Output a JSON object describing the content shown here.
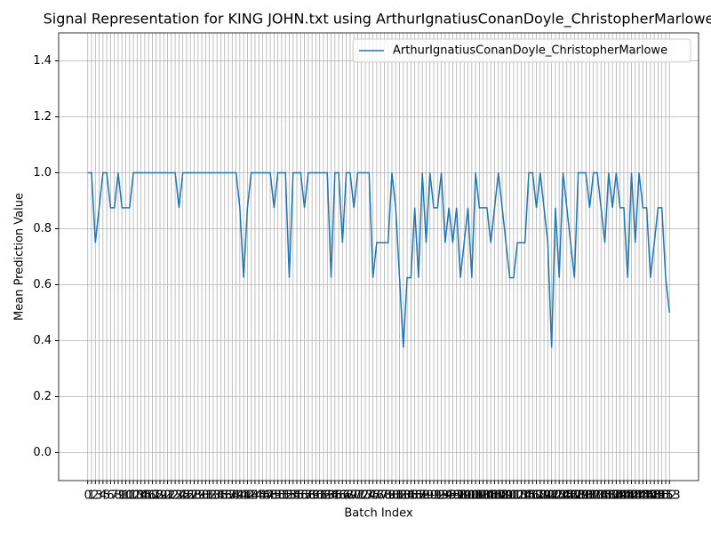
{
  "chart_data": {
    "type": "line",
    "title": "Signal Representation for KING JOHN.txt using ArthurIgnatiusConanDoyle_ChristopherMarlowe",
    "x_label": "Batch Index",
    "y_label": "Mean Prediction Value",
    "x": [
      0,
      1,
      2,
      3,
      4,
      5,
      6,
      7,
      8,
      9,
      10,
      11,
      12,
      13,
      14,
      15,
      16,
      17,
      18,
      19,
      20,
      21,
      22,
      23,
      24,
      25,
      26,
      27,
      28,
      29,
      30,
      31,
      32,
      33,
      34,
      35,
      36,
      37,
      38,
      39,
      40,
      41,
      42,
      43,
      44,
      45,
      46,
      47,
      48,
      49,
      50,
      51,
      52,
      53,
      54,
      55,
      56,
      57,
      58,
      59,
      60,
      61,
      62,
      63,
      64,
      65,
      66,
      67,
      68,
      69,
      70,
      71,
      72,
      73,
      74,
      75,
      76,
      77,
      78,
      79,
      80,
      81,
      82,
      83,
      84,
      85,
      86,
      87,
      88,
      89,
      90,
      91,
      92,
      93,
      94,
      95,
      96,
      97,
      98,
      99,
      100,
      101,
      102,
      103,
      104,
      105,
      106,
      107,
      108,
      109,
      110,
      111,
      112,
      113,
      114,
      115,
      116,
      117,
      118,
      119,
      120,
      121,
      122,
      123,
      124,
      125,
      126,
      127,
      128,
      129,
      130,
      131,
      132,
      133,
      134,
      135,
      136,
      137,
      138,
      139,
      140,
      141,
      142,
      143,
      144,
      145,
      146,
      147,
      148,
      149,
      150,
      151,
      152,
      153
    ],
    "series": [
      {
        "name": "ArthurIgnatiusConanDoyle_ChristopherMarlowe",
        "color": "#1f77b4",
        "values": [
          1.0,
          1.0,
          0.75,
          0.875,
          1.0,
          1.0,
          0.875,
          0.875,
          1.0,
          0.875,
          0.875,
          0.875,
          1.0,
          1.0,
          1.0,
          1.0,
          1.0,
          1.0,
          1.0,
          1.0,
          1.0,
          1.0,
          1.0,
          1.0,
          0.875,
          1.0,
          1.0,
          1.0,
          1.0,
          1.0,
          1.0,
          1.0,
          1.0,
          1.0,
          1.0,
          1.0,
          1.0,
          1.0,
          1.0,
          1.0,
          0.875,
          0.625,
          0.875,
          1.0,
          1.0,
          1.0,
          1.0,
          1.0,
          1.0,
          0.875,
          1.0,
          1.0,
          1.0,
          0.625,
          1.0,
          1.0,
          1.0,
          0.875,
          1.0,
          1.0,
          1.0,
          1.0,
          1.0,
          1.0,
          0.625,
          1.0,
          1.0,
          0.75,
          1.0,
          1.0,
          0.875,
          1.0,
          1.0,
          1.0,
          1.0,
          0.625,
          0.75,
          0.75,
          0.75,
          0.75,
          1.0,
          0.875,
          0.625,
          0.375,
          0.625,
          0.625,
          0.875,
          0.625,
          1.0,
          0.75,
          1.0,
          0.875,
          0.875,
          1.0,
          0.75,
          0.875,
          0.75,
          0.875,
          0.625,
          0.75,
          0.875,
          0.625,
          1.0,
          0.875,
          0.875,
          0.875,
          0.75,
          0.875,
          1.0,
          0.875,
          0.75,
          0.625,
          0.625,
          0.75,
          0.75,
          0.75,
          1.0,
          1.0,
          0.875,
          1.0,
          0.875,
          0.75,
          0.375,
          0.875,
          0.625,
          1.0,
          0.875,
          0.75,
          0.625,
          1.0,
          1.0,
          1.0,
          0.875,
          1.0,
          1.0,
          0.875,
          0.75,
          1.0,
          0.875,
          1.0,
          0.875,
          0.875,
          0.625,
          1.0,
          0.75,
          1.0,
          0.875,
          0.875,
          0.625,
          0.75,
          0.875,
          0.875,
          0.625,
          0.5
        ]
      }
    ],
    "xlim": [
      -7.65,
      160.65
    ],
    "ylim": [
      -0.1,
      1.5
    ],
    "xticks": [
      0,
      1,
      2,
      3,
      4,
      5,
      6,
      7,
      8,
      9,
      10,
      11,
      12,
      13,
      14,
      15,
      16,
      17,
      18,
      19,
      20,
      21,
      22,
      23,
      24,
      25,
      26,
      27,
      28,
      29,
      30,
      31,
      32,
      33,
      34,
      35,
      36,
      37,
      38,
      39,
      40,
      41,
      42,
      43,
      44,
      45,
      46,
      47,
      48,
      49,
      50,
      51,
      52,
      53,
      54,
      55,
      56,
      57,
      58,
      59,
      60,
      61,
      62,
      63,
      64,
      65,
      66,
      67,
      68,
      69,
      70,
      71,
      72,
      73,
      74,
      75,
      76,
      77,
      78,
      79,
      80,
      81,
      82,
      83,
      84,
      85,
      86,
      87,
      88,
      89,
      90,
      91,
      92,
      93,
      94,
      95,
      96,
      97,
      98,
      99,
      100,
      101,
      102,
      103,
      104,
      105,
      106,
      107,
      108,
      109,
      110,
      111,
      112,
      113,
      114,
      115,
      116,
      117,
      118,
      119,
      120,
      121,
      122,
      123,
      124,
      125,
      126,
      127,
      128,
      129,
      130,
      131,
      132,
      133,
      134,
      135,
      136,
      137,
      138,
      139,
      140,
      141,
      142,
      143,
      144,
      145,
      146,
      147,
      148,
      149,
      150,
      151,
      152,
      153
    ],
    "yticks": [
      {
        "value": 0,
        "label": "0.0"
      },
      {
        "value": 0.2,
        "label": "0.2"
      },
      {
        "value": 0.4,
        "label": "0.4"
      },
      {
        "value": 0.6,
        "label": "0.6"
      },
      {
        "value": 0.8,
        "label": "0.8"
      },
      {
        "value": 1,
        "label": "1.0"
      },
      {
        "value": 1.2,
        "label": "1.2"
      },
      {
        "value": 1.4,
        "label": "1.4"
      }
    ],
    "grid": true,
    "legend": "upper-right"
  }
}
